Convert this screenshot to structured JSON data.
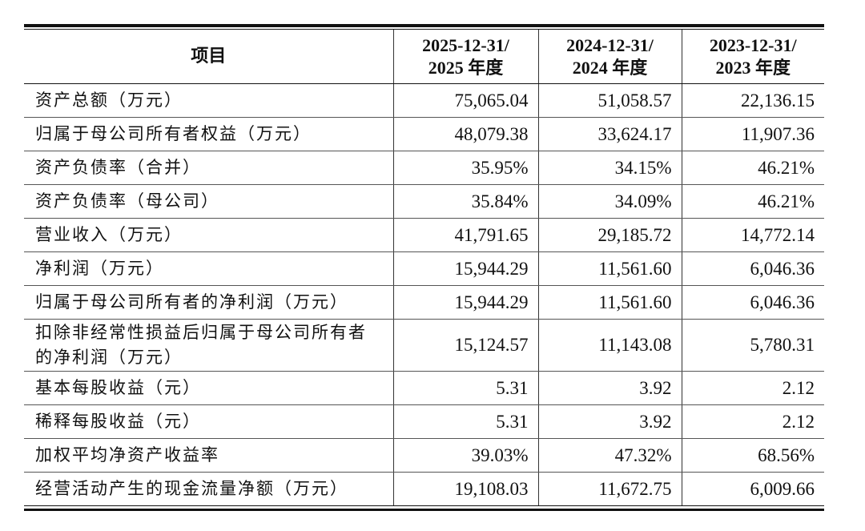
{
  "table": {
    "header": {
      "item": "项目",
      "columns": [
        {
          "line1": "2025-12-31/",
          "line2": "2025 年度"
        },
        {
          "line1": "2024-12-31/",
          "line2": "2024 年度"
        },
        {
          "line1": "2023-12-31/",
          "line2": "2023 年度"
        }
      ]
    },
    "rows": [
      {
        "label": "资产总额（万元）",
        "v2025": "75,065.04",
        "v2024": "51,058.57",
        "v2023": "22,136.15"
      },
      {
        "label": "归属于母公司所有者权益（万元）",
        "v2025": "48,079.38",
        "v2024": "33,624.17",
        "v2023": "11,907.36"
      },
      {
        "label": "资产负债率（合并）",
        "v2025": "35.95%",
        "v2024": "34.15%",
        "v2023": "46.21%"
      },
      {
        "label": "资产负债率（母公司）",
        "v2025": "35.84%",
        "v2024": "34.09%",
        "v2023": "46.21%"
      },
      {
        "label": "营业收入（万元）",
        "v2025": "41,791.65",
        "v2024": "29,185.72",
        "v2023": "14,772.14"
      },
      {
        "label": "净利润（万元）",
        "v2025": "15,944.29",
        "v2024": "11,561.60",
        "v2023": "6,046.36"
      },
      {
        "label": "归属于母公司所有者的净利润（万元）",
        "v2025": "15,944.29",
        "v2024": "11,561.60",
        "v2023": "6,046.36"
      },
      {
        "label": "扣除非经常性损益后归属于母公司所有者的净利润（万元）",
        "v2025": "15,124.57",
        "v2024": "11,143.08",
        "v2023": "5,780.31"
      },
      {
        "label": "基本每股收益（元）",
        "v2025": "5.31",
        "v2024": "3.92",
        "v2023": "2.12"
      },
      {
        "label": "稀释每股收益（元）",
        "v2025": "5.31",
        "v2024": "3.92",
        "v2023": "2.12"
      },
      {
        "label": "加权平均净资产收益率",
        "v2025": "39.03%",
        "v2024": "47.32%",
        "v2023": "68.56%"
      },
      {
        "label": "经营活动产生的现金流量净额（万元）",
        "v2025": "19,108.03",
        "v2024": "11,672.75",
        "v2023": "6,009.66"
      }
    ]
  }
}
